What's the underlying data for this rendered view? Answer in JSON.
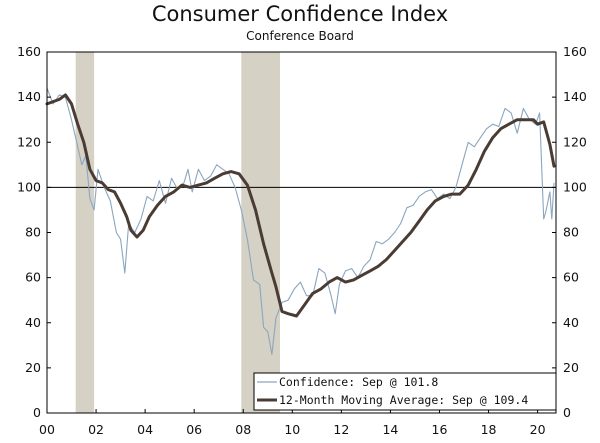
{
  "chart_data": {
    "type": "line",
    "title": "Consumer Confidence Index",
    "subtitle": "Conference Board",
    "ylim": [
      0,
      160
    ],
    "yticks": [
      0,
      20,
      40,
      60,
      80,
      100,
      120,
      140,
      160
    ],
    "xlim": [
      2000.0,
      2020.75
    ],
    "xticks": [
      {
        "value": 2000,
        "label": "00"
      },
      {
        "value": 2002,
        "label": "02"
      },
      {
        "value": 2004,
        "label": "04"
      },
      {
        "value": 2006,
        "label": "06"
      },
      {
        "value": 2008,
        "label": "08"
      },
      {
        "value": 2010,
        "label": "10"
      },
      {
        "value": 2012,
        "label": "12"
      },
      {
        "value": 2014,
        "label": "14"
      },
      {
        "value": 2016,
        "label": "16"
      },
      {
        "value": 2018,
        "label": "18"
      },
      {
        "value": 2020,
        "label": "20"
      }
    ],
    "reference_line": 100,
    "recessions": [
      [
        2001.17,
        2001.92
      ],
      [
        2007.92,
        2009.5
      ]
    ],
    "colors": {
      "confidence": "#8aa6c0",
      "moving_average": "#4a3b33",
      "recession": "#d6d1c5",
      "axis": "#000000"
    },
    "series": [
      {
        "name": "Confidence: Sep @ 101.8",
        "x": [
          2000.0,
          2000.25,
          2000.5,
          2000.75,
          2001.0,
          2001.25,
          2001.42,
          2001.58,
          2001.75,
          2001.92,
          2002.08,
          2002.33,
          2002.58,
          2002.83,
          2003.0,
          2003.17,
          2003.33,
          2003.58,
          2003.83,
          2004.08,
          2004.33,
          2004.58,
          2004.83,
          2005.08,
          2005.33,
          2005.58,
          2005.75,
          2005.92,
          2006.17,
          2006.42,
          2006.67,
          2006.92,
          2007.17,
          2007.42,
          2007.67,
          2007.92,
          2008.17,
          2008.42,
          2008.67,
          2008.83,
          2009.0,
          2009.17,
          2009.33,
          2009.58,
          2009.83,
          2010.08,
          2010.33,
          2010.58,
          2010.83,
          2011.08,
          2011.33,
          2011.58,
          2011.75,
          2011.92,
          2012.17,
          2012.42,
          2012.67,
          2012.92,
          2013.17,
          2013.42,
          2013.67,
          2013.92,
          2014.17,
          2014.42,
          2014.67,
          2014.92,
          2015.17,
          2015.42,
          2015.67,
          2015.92,
          2016.17,
          2016.42,
          2016.67,
          2016.92,
          2017.17,
          2017.42,
          2017.67,
          2017.92,
          2018.17,
          2018.42,
          2018.67,
          2018.92,
          2019.17,
          2019.42,
          2019.67,
          2019.92,
          2020.08,
          2020.25,
          2020.33,
          2020.5,
          2020.58,
          2020.67
        ],
        "values": [
          144,
          137,
          141,
          140,
          130,
          118,
          110,
          114,
          95,
          90,
          108,
          100,
          94,
          80,
          77,
          62,
          84,
          80,
          86,
          96,
          94,
          103,
          93,
          104,
          99,
          102,
          108,
          98,
          108,
          103,
          105,
          110,
          108,
          106,
          100,
          90,
          77,
          59,
          57,
          38,
          36,
          26,
          42,
          49,
          50,
          55,
          58,
          52,
          52,
          64,
          62,
          52,
          44,
          57,
          63,
          64,
          60,
          65,
          68,
          76,
          75,
          77,
          80,
          84,
          91,
          92,
          96,
          98,
          99,
          95,
          97,
          95,
          100,
          110,
          120,
          118,
          122,
          126,
          128,
          127,
          135,
          133,
          124,
          135,
          130,
          128,
          133,
          86,
          89,
          98,
          86,
          101.8
        ]
      },
      {
        "name": "12-Month Moving Average: Sep @ 109.4",
        "x": [
          2000.0,
          2000.5,
          2000.75,
          2001.0,
          2001.25,
          2001.5,
          2001.75,
          2002.0,
          2002.25,
          2002.5,
          2002.75,
          2003.0,
          2003.25,
          2003.42,
          2003.67,
          2003.92,
          2004.17,
          2004.5,
          2004.83,
          2005.17,
          2005.5,
          2005.83,
          2006.17,
          2006.5,
          2006.83,
          2007.17,
          2007.5,
          2007.83,
          2008.17,
          2008.5,
          2008.83,
          2009.17,
          2009.33,
          2009.58,
          2009.83,
          2010.17,
          2010.5,
          2010.83,
          2011.17,
          2011.5,
          2011.83,
          2012.17,
          2012.5,
          2012.83,
          2013.17,
          2013.5,
          2013.83,
          2014.17,
          2014.5,
          2014.83,
          2015.17,
          2015.5,
          2015.83,
          2016.17,
          2016.5,
          2016.83,
          2017.17,
          2017.5,
          2017.83,
          2018.17,
          2018.5,
          2018.83,
          2019.17,
          2019.5,
          2019.83,
          2020.0,
          2020.25,
          2020.5,
          2020.67
        ],
        "values": [
          137,
          139,
          141,
          137,
          128,
          120,
          108,
          103,
          102,
          99,
          98,
          93,
          87,
          81,
          78,
          81,
          87,
          92,
          96,
          98,
          101,
          100,
          101,
          102,
          104,
          106,
          107,
          106,
          101,
          90,
          75,
          62,
          56,
          45,
          44,
          43,
          48,
          53,
          55,
          58,
          60,
          58,
          59,
          61,
          63,
          65,
          68,
          72,
          76,
          80,
          85,
          90,
          94,
          96,
          97,
          97,
          101,
          108,
          116,
          122,
          126,
          128,
          130,
          130,
          130,
          128,
          129,
          119,
          109.4
        ]
      }
    ]
  }
}
